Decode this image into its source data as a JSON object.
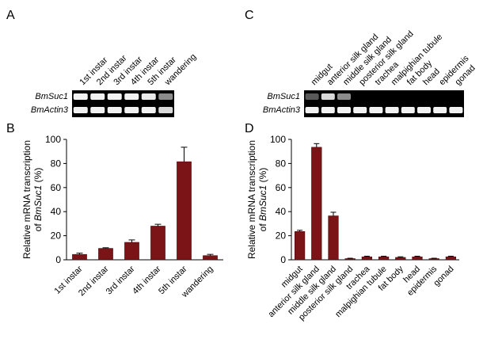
{
  "panels": {
    "A": {
      "letter": "A",
      "lanes": [
        "1st instar",
        "2nd instar",
        "3rd instar",
        "4th instar",
        "5th instar",
        "wandering"
      ],
      "gel_rows": [
        {
          "label_prefix": "Bm",
          "label_suffix": "Suc1"
        },
        {
          "label_prefix": "Bm",
          "label_suffix": "Actin3"
        }
      ]
    },
    "B": {
      "letter": "B"
    },
    "C": {
      "letter": "C",
      "lanes": [
        "midgut",
        "anterior silk gland",
        "middle silk gland",
        "posterior silk gland",
        "trachea",
        "malpighian tubule",
        "fat body",
        "head",
        "epidermis",
        "gonad"
      ],
      "gel_rows": [
        {
          "label_prefix": "Bm",
          "label_suffix": "Suc1"
        },
        {
          "label_prefix": "Bm",
          "label_suffix": "Actin3"
        }
      ]
    },
    "D": {
      "letter": "D"
    }
  },
  "chart_data": [
    {
      "panel": "B",
      "type": "bar",
      "categories": [
        "1st instar",
        "2nd instar",
        "3rd instar",
        "4th instar",
        "5th instar",
        "wandering"
      ],
      "values": [
        4.5,
        9.5,
        14.5,
        28,
        81.5,
        3.5
      ],
      "errors": [
        1,
        0.5,
        2,
        1.5,
        12,
        1
      ],
      "ylabel_line1": "Relative mRNA transcription",
      "ylabel_line2_prefix": "of ",
      "ylabel_line2_gene_prefix": "Bm",
      "ylabel_line2_gene_suffix": "Suc1",
      "ylabel_line2_suffix": " (%)",
      "ylim": [
        0,
        100
      ],
      "yticks": [
        "0",
        "20",
        "40",
        "60",
        "80",
        "100"
      ],
      "bar_color": "#7b1416"
    },
    {
      "panel": "D",
      "type": "bar",
      "categories": [
        "midgut",
        "anterior silk gland",
        "middle silk gland",
        "posterior silk gland",
        "trachea",
        "malpighian tubule",
        "fat body",
        "head",
        "epidermis",
        "gonad"
      ],
      "values": [
        23.5,
        93.5,
        36.5,
        1,
        2.5,
        2.5,
        2,
        2.5,
        1,
        2.5
      ],
      "errors": [
        1,
        3,
        3,
        0.3,
        0.5,
        0.5,
        0.5,
        0.5,
        0.3,
        0.5
      ],
      "ylabel_line1": "Relative mRNA transcription",
      "ylabel_line2_prefix": "of ",
      "ylabel_line2_gene_prefix": "Bm",
      "ylabel_line2_gene_suffix": "Suc1",
      "ylabel_line2_suffix": " (%)",
      "ylim": [
        0,
        100
      ],
      "yticks": [
        "0",
        "20",
        "40",
        "60",
        "80",
        "100"
      ],
      "bar_color": "#7b1416"
    }
  ]
}
